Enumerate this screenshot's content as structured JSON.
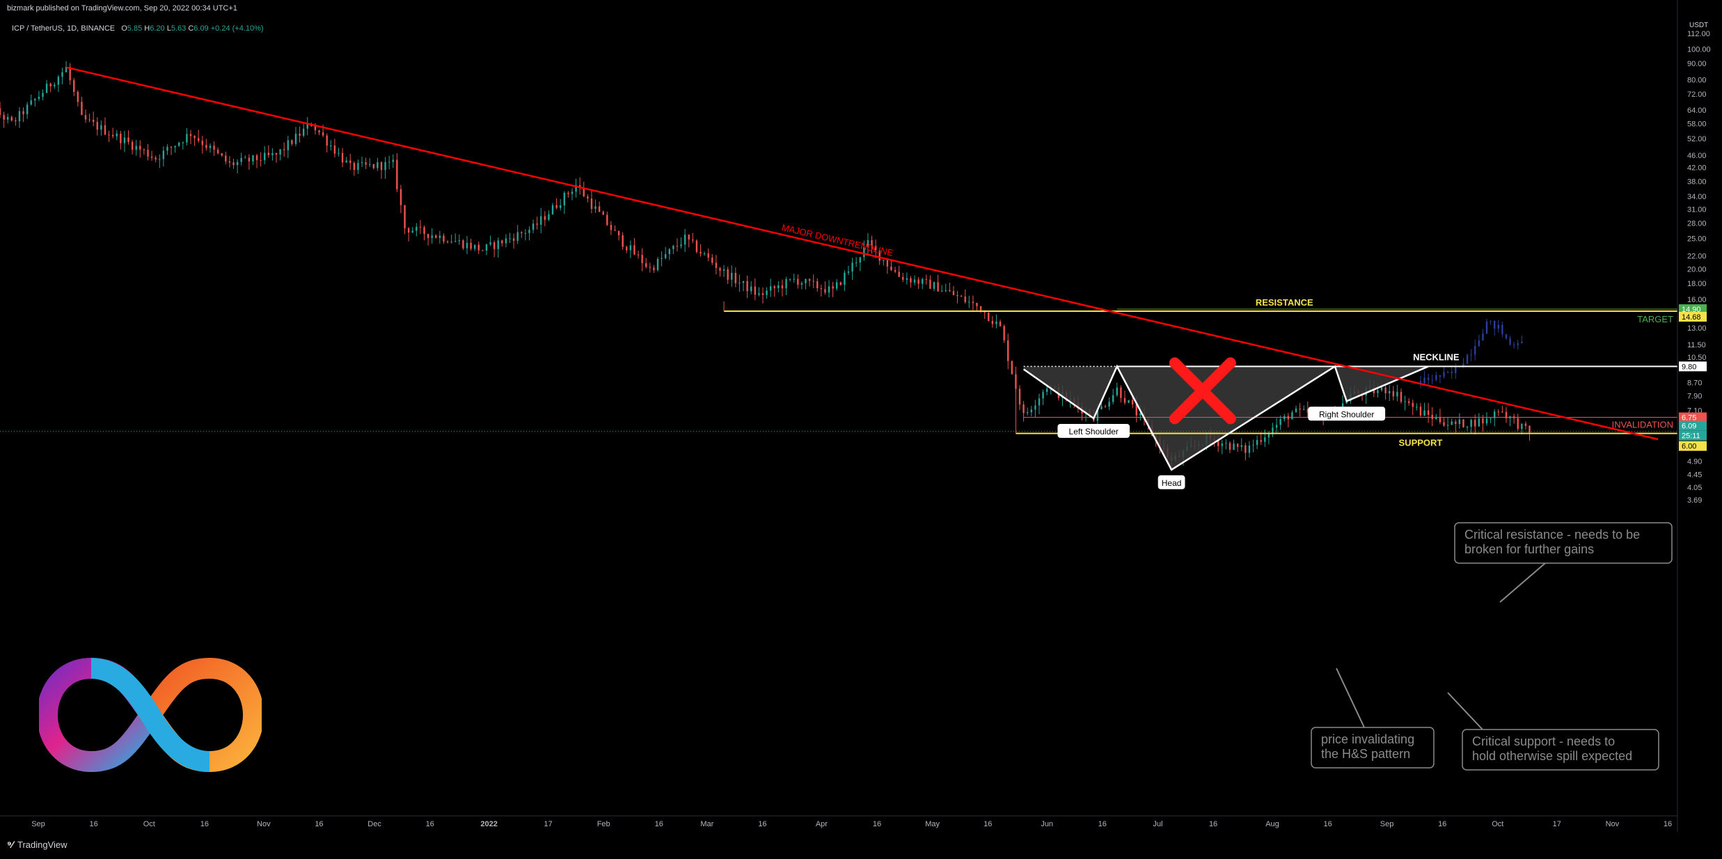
{
  "header": {
    "published": "bizmark published on TradingView.com, Sep 20, 2022 00:34 UTC+1",
    "symbol": "ICP / TetherUS, 1D, BINANCE",
    "ohlc": {
      "o_label": "O",
      "o": "5.85",
      "h_label": "H",
      "h": "6.20",
      "l_label": "L",
      "l": "5.63",
      "c_label": "C",
      "c": "6.09",
      "change": "+0.24 (+4.10%)"
    }
  },
  "footer": {
    "brand": "TradingView"
  },
  "colors": {
    "bg": "#000000",
    "up": "#26a69a",
    "down": "#ef5350",
    "trend": "#ff0000",
    "support": "#f5e24a",
    "white": "#ffffff",
    "projection": "#2a3f9a",
    "target": "#4caf50"
  },
  "chart_data": {
    "type": "candlestick",
    "y_scale": "log",
    "ylim": [
      3.3,
      128
    ],
    "currency": "USDT",
    "y_ticks": [
      "112.00",
      "100.00",
      "90.00",
      "80.00",
      "72.00",
      "64.00",
      "58.00",
      "52.00",
      "46.00",
      "42.00",
      "38.00",
      "34.00",
      "31.00",
      "28.00",
      "25.00",
      "22.00",
      "20.00",
      "18.00",
      "16.00",
      "14.90",
      "14.68",
      "13.00",
      "11.50",
      "10.50",
      "9.80",
      "8.70",
      "7.90",
      "7.10",
      "6.75",
      "6.50",
      "6.09",
      "25:11",
      "6.00",
      "5.40",
      "4.90",
      "4.45",
      "4.05",
      "3.69"
    ],
    "x_ticks": [
      "Sep",
      "16",
      "Oct",
      "16",
      "Nov",
      "16",
      "Dec",
      "16",
      "2022",
      "17",
      "Feb",
      "16",
      "Mar",
      "16",
      "Apr",
      "16",
      "May",
      "16",
      "Jun",
      "16",
      "Jul",
      "16",
      "Aug",
      "16",
      "Sep",
      "16",
      "Oct",
      "17",
      "Nov",
      "16"
    ],
    "key_levels": {
      "resistance": {
        "value": 14.68,
        "label": "RESISTANCE"
      },
      "target": {
        "value": 14.9,
        "label": "TARGET"
      },
      "neckline": {
        "value": 9.8,
        "label": "NECKLINE"
      },
      "invalidation": {
        "value": 6.75,
        "label": "INVALIDATION"
      },
      "support": {
        "value": 6.0,
        "label": "SUPPORT"
      },
      "last_price": {
        "value": 6.09
      }
    },
    "downtrend": {
      "label": "MAJOR DOWNTRENDLINE",
      "start": {
        "date": "2021-09-08",
        "price": 87.5
      },
      "end": {
        "date": "2022-10-22",
        "price": 5.75
      }
    },
    "pattern": {
      "points": [
        {
          "date": "2022-05-12",
          "price": 9.6
        },
        {
          "date": "2022-05-30",
          "price": 6.7,
          "label": "Left Shoulder"
        },
        {
          "date": "2022-06-05",
          "price": 9.8
        },
        {
          "date": "2022-06-19",
          "price": 4.6,
          "label": "Head"
        },
        {
          "date": "2022-07-31",
          "price": 9.8
        },
        {
          "date": "2022-08-03",
          "price": 7.6,
          "label": "Right Shoulder"
        },
        {
          "date": "2022-08-24",
          "price": 9.8
        }
      ]
    },
    "annotations": {
      "critical_resistance": [
        "Critical resistance - needs to be",
        "broken for further gains"
      ],
      "price_invalidating": [
        "price invalidating",
        "the H&S pattern"
      ],
      "critical_support": [
        "Critical support - needs to",
        "hold otherwise spill expected"
      ]
    },
    "anchors": [
      [
        "2021-08-15",
        72
      ],
      [
        "2021-08-25",
        58
      ],
      [
        "2021-09-08",
        87
      ],
      [
        "2021-09-12",
        60
      ],
      [
        "2021-09-22",
        52
      ],
      [
        "2021-10-01",
        45
      ],
      [
        "2021-10-10",
        54
      ],
      [
        "2021-10-20",
        43
      ],
      [
        "2021-11-01",
        46
      ],
      [
        "2021-11-10",
        58
      ],
      [
        "2021-11-20",
        42
      ],
      [
        "2021-12-01",
        43
      ],
      [
        "2021-12-04",
        27
      ],
      [
        "2021-12-15",
        25
      ],
      [
        "2021-12-24",
        23
      ],
      [
        "2022-01-06",
        27
      ],
      [
        "2022-01-17",
        37
      ],
      [
        "2022-01-28",
        25
      ],
      [
        "2022-02-05",
        20
      ],
      [
        "2022-02-14",
        25
      ],
      [
        "2022-02-24",
        19.5
      ],
      [
        "2022-03-05",
        16.5
      ],
      [
        "2022-03-14",
        18.5
      ],
      [
        "2022-03-24",
        17
      ],
      [
        "2022-04-02",
        24
      ],
      [
        "2022-04-10",
        19
      ],
      [
        "2022-04-20",
        17.5
      ],
      [
        "2022-05-01",
        15
      ],
      [
        "2022-05-06",
        13
      ],
      [
        "2022-05-12",
        6.8
      ],
      [
        "2022-05-18",
        8.5
      ],
      [
        "2022-05-30",
        6.8
      ],
      [
        "2022-06-05",
        8.3
      ],
      [
        "2022-06-12",
        6.5
      ],
      [
        "2022-06-19",
        4.9
      ],
      [
        "2022-06-28",
        5.8
      ],
      [
        "2022-07-08",
        5.3
      ],
      [
        "2022-07-20",
        7.0
      ],
      [
        "2022-07-31",
        6.9
      ],
      [
        "2022-08-04",
        8.0
      ],
      [
        "2022-08-14",
        8.3
      ],
      [
        "2022-08-22",
        7.0
      ],
      [
        "2022-08-30",
        6.4
      ],
      [
        "2022-09-08",
        6.6
      ],
      [
        "2022-09-11",
        7.2
      ],
      [
        "2022-09-19",
        6.0
      ]
    ],
    "projection": [
      [
        "2022-08-22",
        8.8
      ],
      [
        "2022-08-30",
        9.3
      ],
      [
        "2022-09-04",
        11.0
      ],
      [
        "2022-09-08",
        13.5
      ],
      [
        "2022-09-11",
        13.0
      ],
      [
        "2022-09-14",
        11.5
      ],
      [
        "2022-09-17",
        12.0
      ]
    ]
  }
}
